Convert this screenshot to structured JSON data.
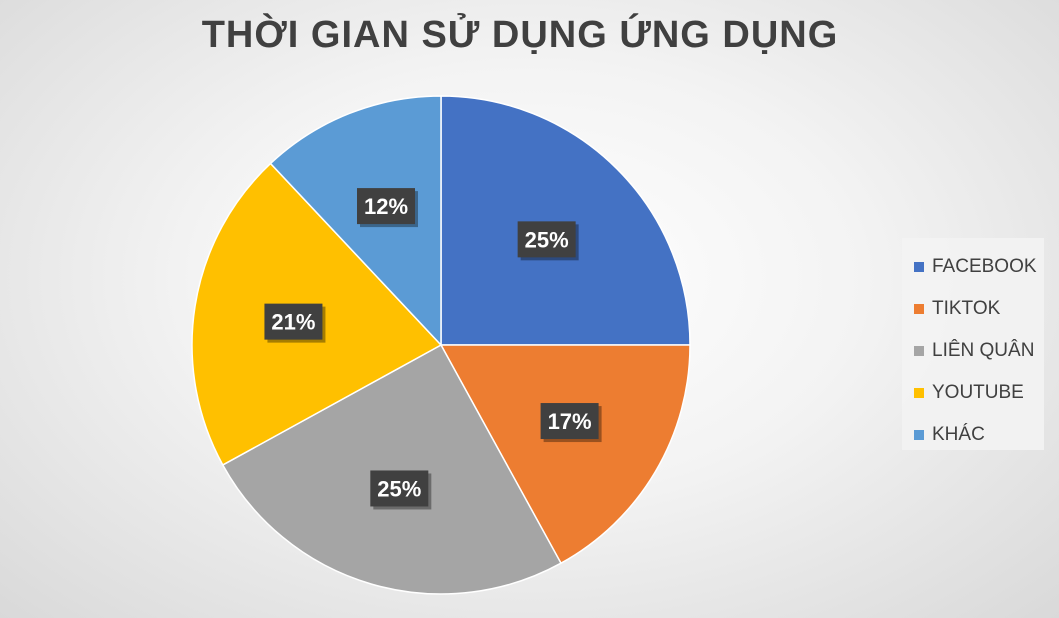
{
  "chart_data": {
    "type": "pie",
    "title": "THỜI GIAN SỬ DỤNG ỨNG DỤNG",
    "categories": [
      "FACEBOOK",
      "TIKTOK",
      "LIÊN QUÂN",
      "YOUTUBE",
      "KHÁC"
    ],
    "values": [
      25,
      17,
      25,
      21,
      12
    ],
    "data_labels": [
      "25%",
      "17%",
      "25%",
      "21%",
      "12%"
    ],
    "colors": [
      "#4472C4",
      "#ED7D31",
      "#A5A5A5",
      "#FFC000",
      "#5B9BD5"
    ],
    "legend_position": "right"
  }
}
